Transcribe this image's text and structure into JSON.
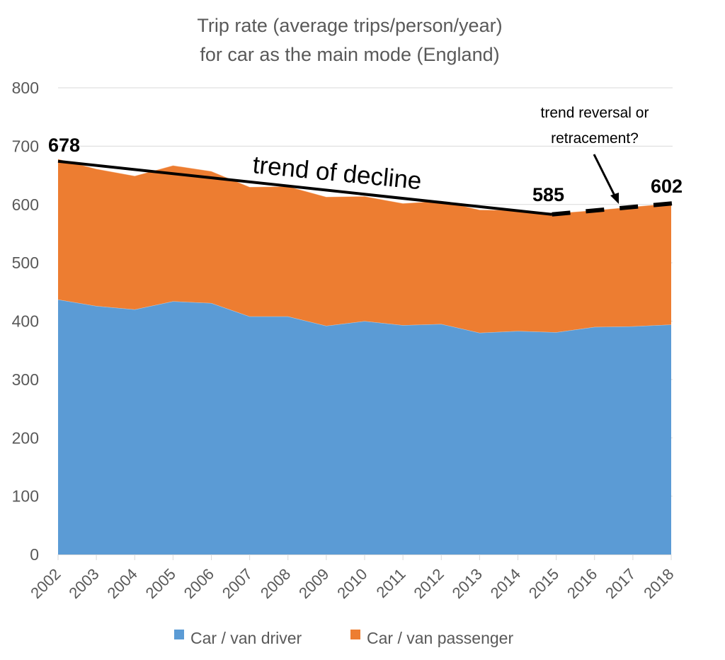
{
  "chart_data": {
    "type": "area",
    "stacked": true,
    "title": [
      "Trip rate (average trips/person/year)",
      "for car as the main mode (England)"
    ],
    "xlabel": "",
    "ylabel": "",
    "categories": [
      "2002",
      "2003",
      "2004",
      "2005",
      "2006",
      "2007",
      "2008",
      "2009",
      "2010",
      "2011",
      "2012",
      "2013",
      "2014",
      "2015",
      "2016",
      "2017",
      "2018"
    ],
    "series": [
      {
        "name": "Car / van driver",
        "color": "#5B9BD5",
        "values": [
          437,
          426,
          420,
          434,
          431,
          408,
          408,
          392,
          400,
          393,
          395,
          380,
          383,
          381,
          390,
          391,
          394
        ]
      },
      {
        "name": "Car / van passenger",
        "color": "#ED7D31",
        "values": [
          241,
          235,
          229,
          233,
          226,
          222,
          223,
          221,
          214,
          209,
          211,
          211,
          207,
          204,
          200,
          205,
          208
        ]
      }
    ],
    "totals": [
      678,
      661,
      649,
      667,
      657,
      630,
      631,
      613,
      614,
      602,
      606,
      591,
      590,
      585,
      590,
      596,
      602
    ],
    "ylim": [
      0,
      800
    ],
    "yticks": [
      "0",
      "100",
      "200",
      "300",
      "400",
      "500",
      "600",
      "700",
      "800"
    ],
    "grid": true,
    "legend": "bottom",
    "annotations": {
      "label_start": "678",
      "label_2015": "585",
      "label_end": "602",
      "trend_decline_text": "trend of decline",
      "trend_reversal_text_line1": "trend reversal or",
      "trend_reversal_text_line2": "retracement?",
      "decline_line": {
        "from": {
          "x": "2002",
          "y": 674
        },
        "to": {
          "x": "2015",
          "y": 583
        }
      },
      "reversal_line": {
        "from": {
          "x": "2015",
          "y": 583
        },
        "to": {
          "x": "2018",
          "y": 602
        }
      }
    }
  }
}
